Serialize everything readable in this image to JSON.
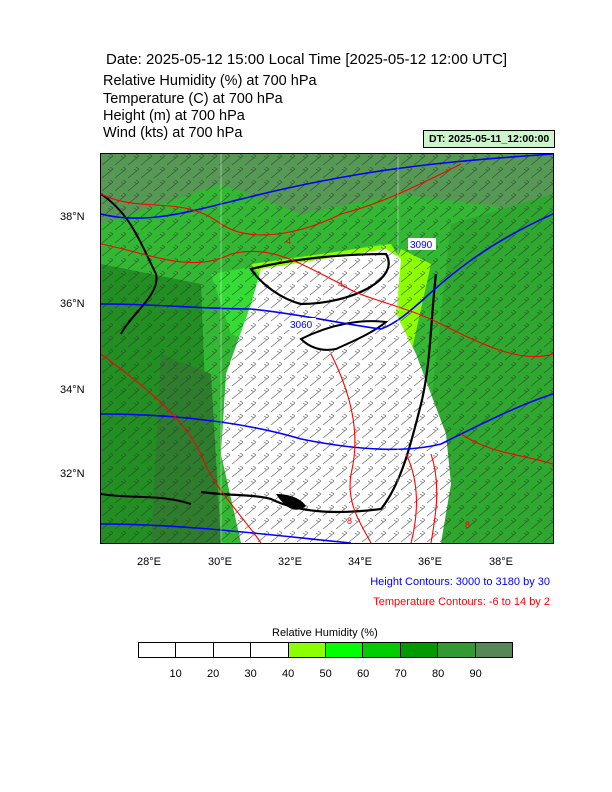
{
  "header": {
    "title": "Date: 2025-05-12  15:00 Local Time [2025-05-12  12:00 UTC]",
    "variables": [
      "Relative Humidity   (%)     at   700 hPa",
      "Temperature   (C)     at   700 hPa",
      "Height   (m)     at   700 hPa",
      "Wind   (kts)     at   700 hPa"
    ],
    "dt_badge": "DT: 2025-05-11_12:00:00"
  },
  "map": {
    "lat_labels": [
      "38°N",
      "36°N",
      "34°N",
      "32°N"
    ],
    "lon_labels": [
      "28°E",
      "30°E",
      "32°E",
      "34°E",
      "36°E",
      "38°E"
    ],
    "height_labels": [
      "3060",
      "3090"
    ],
    "temp_labels": [
      "4",
      "4",
      "8",
      "8"
    ],
    "colors": {
      "coast": "#000000",
      "height_contour": "#0000ff",
      "temp_contour": "#ff0000",
      "dry": "#ffffff"
    }
  },
  "notes": {
    "height_contours": "Height Contours: 3000 to 3180 by 30",
    "temp_contours": "Temperature Contours: -6 to 14 by 2"
  },
  "colorbar": {
    "title": "Relative Humidity  (%)",
    "colors": [
      "#ffffff",
      "#ffffff",
      "#ffffff",
      "#ffffff",
      "#8cff00",
      "#00ff00",
      "#00cc00",
      "#009900",
      "#339933",
      "#558855"
    ],
    "labels": [
      "10",
      "20",
      "30",
      "40",
      "50",
      "60",
      "70",
      "80",
      "90"
    ]
  }
}
